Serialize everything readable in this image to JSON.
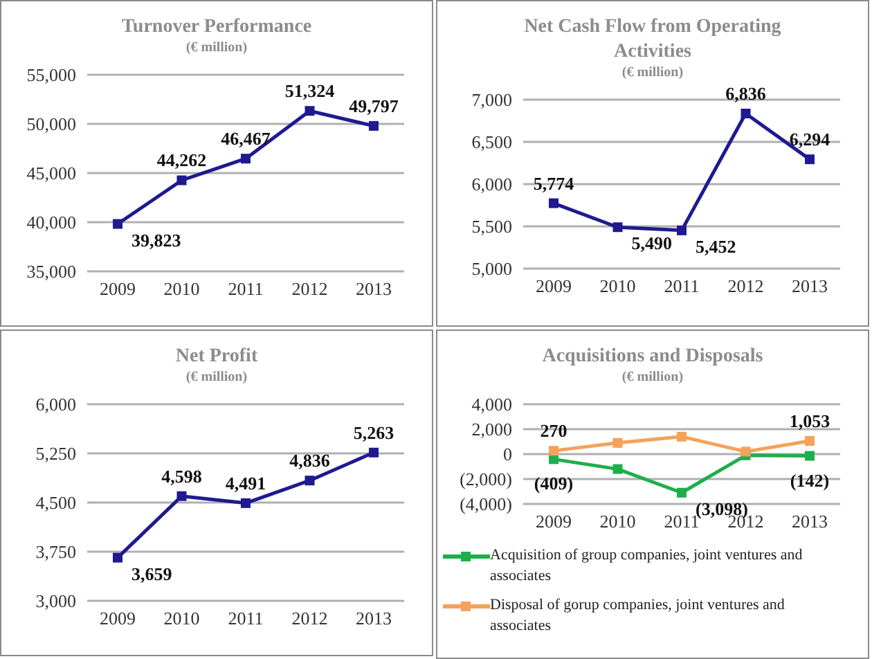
{
  "chart_data": [
    {
      "type": "line",
      "title": "Turnover Performance",
      "subtitle": "(€ million)",
      "categories": [
        "2009",
        "2010",
        "2011",
        "2012",
        "2013"
      ],
      "series": [
        {
          "color": "#1f1a8f",
          "values": [
            39823,
            44262,
            46467,
            51324,
            49797
          ],
          "value_labels": [
            "39,823",
            "44,262",
            "46,467",
            "51,324",
            "49,797"
          ]
        }
      ],
      "ylim": [
        35000,
        55000
      ],
      "yticks": [
        {
          "value": 35000,
          "label": "35,000"
        },
        {
          "value": 40000,
          "label": "40,000"
        },
        {
          "value": 45000,
          "label": "45,000"
        },
        {
          "value": 50000,
          "label": "50,000"
        },
        {
          "value": 55000,
          "label": "55,000"
        }
      ],
      "grid": "y",
      "marker": "square",
      "legend": false
    },
    {
      "type": "line",
      "title": "Net Cash Flow from Operating Activities",
      "subtitle": "(€ million)",
      "categories": [
        "2009",
        "2010",
        "2011",
        "2012",
        "2013"
      ],
      "series": [
        {
          "color": "#1f1a8f",
          "values": [
            5774,
            5490,
            5452,
            6836,
            6294
          ],
          "value_labels": [
            "5,774",
            "5,490",
            "5,452",
            "6,836",
            "6,294"
          ]
        }
      ],
      "ylim": [
        5000,
        7000
      ],
      "yticks": [
        {
          "value": 5000,
          "label": "5,000"
        },
        {
          "value": 5500,
          "label": "5,500"
        },
        {
          "value": 6000,
          "label": "6,000"
        },
        {
          "value": 6500,
          "label": "6,500"
        },
        {
          "value": 7000,
          "label": "7,000"
        }
      ],
      "grid": "y",
      "marker": "square",
      "legend": false
    },
    {
      "type": "line",
      "title": "Net Profit",
      "subtitle": "(€ million)",
      "categories": [
        "2009",
        "2010",
        "2011",
        "2012",
        "2013"
      ],
      "series": [
        {
          "color": "#1f1a8f",
          "values": [
            3659,
            4598,
            4491,
            4836,
            5263
          ],
          "value_labels": [
            "3,659",
            "4,598",
            "4,491",
            "4,836",
            "5,263"
          ]
        }
      ],
      "ylim": [
        3000,
        6000
      ],
      "yticks": [
        {
          "value": 3000,
          "label": "3,000"
        },
        {
          "value": 3750,
          "label": "3,750"
        },
        {
          "value": 4500,
          "label": "4,500"
        },
        {
          "value": 5250,
          "label": "5,250"
        },
        {
          "value": 6000,
          "label": "6,000"
        }
      ],
      "grid": "y",
      "marker": "square",
      "legend": false
    },
    {
      "type": "line",
      "title": "Acquisitions and Disposals",
      "subtitle": "(€ million)",
      "categories": [
        "2009",
        "2010",
        "2011",
        "2012",
        "2013"
      ],
      "series": [
        {
          "name": "Acquisition of group companies, joint ventures and associates",
          "color": "#1fae4b",
          "values": [
            -409,
            -1200,
            -3098,
            -100,
            -142
          ],
          "value_labels": [
            "(409)",
            null,
            "(3,098)",
            null,
            "(142)"
          ]
        },
        {
          "name": "Disposal of gorup companies, joint ventures and associates",
          "color": "#f5a25a",
          "values": [
            270,
            900,
            1400,
            200,
            1053
          ],
          "value_labels": [
            "270",
            null,
            null,
            null,
            "1,053"
          ]
        }
      ],
      "ylim": [
        -4000,
        4000
      ],
      "yticks": [
        {
          "value": -4000,
          "label": "(4,000)"
        },
        {
          "value": -2000,
          "label": "(2,000)"
        },
        {
          "value": 0,
          "label": "0"
        },
        {
          "value": 2000,
          "label": "2,000"
        },
        {
          "value": 4000,
          "label": "4,000"
        }
      ],
      "grid": "y",
      "marker": "square",
      "legend": "bottom"
    }
  ]
}
